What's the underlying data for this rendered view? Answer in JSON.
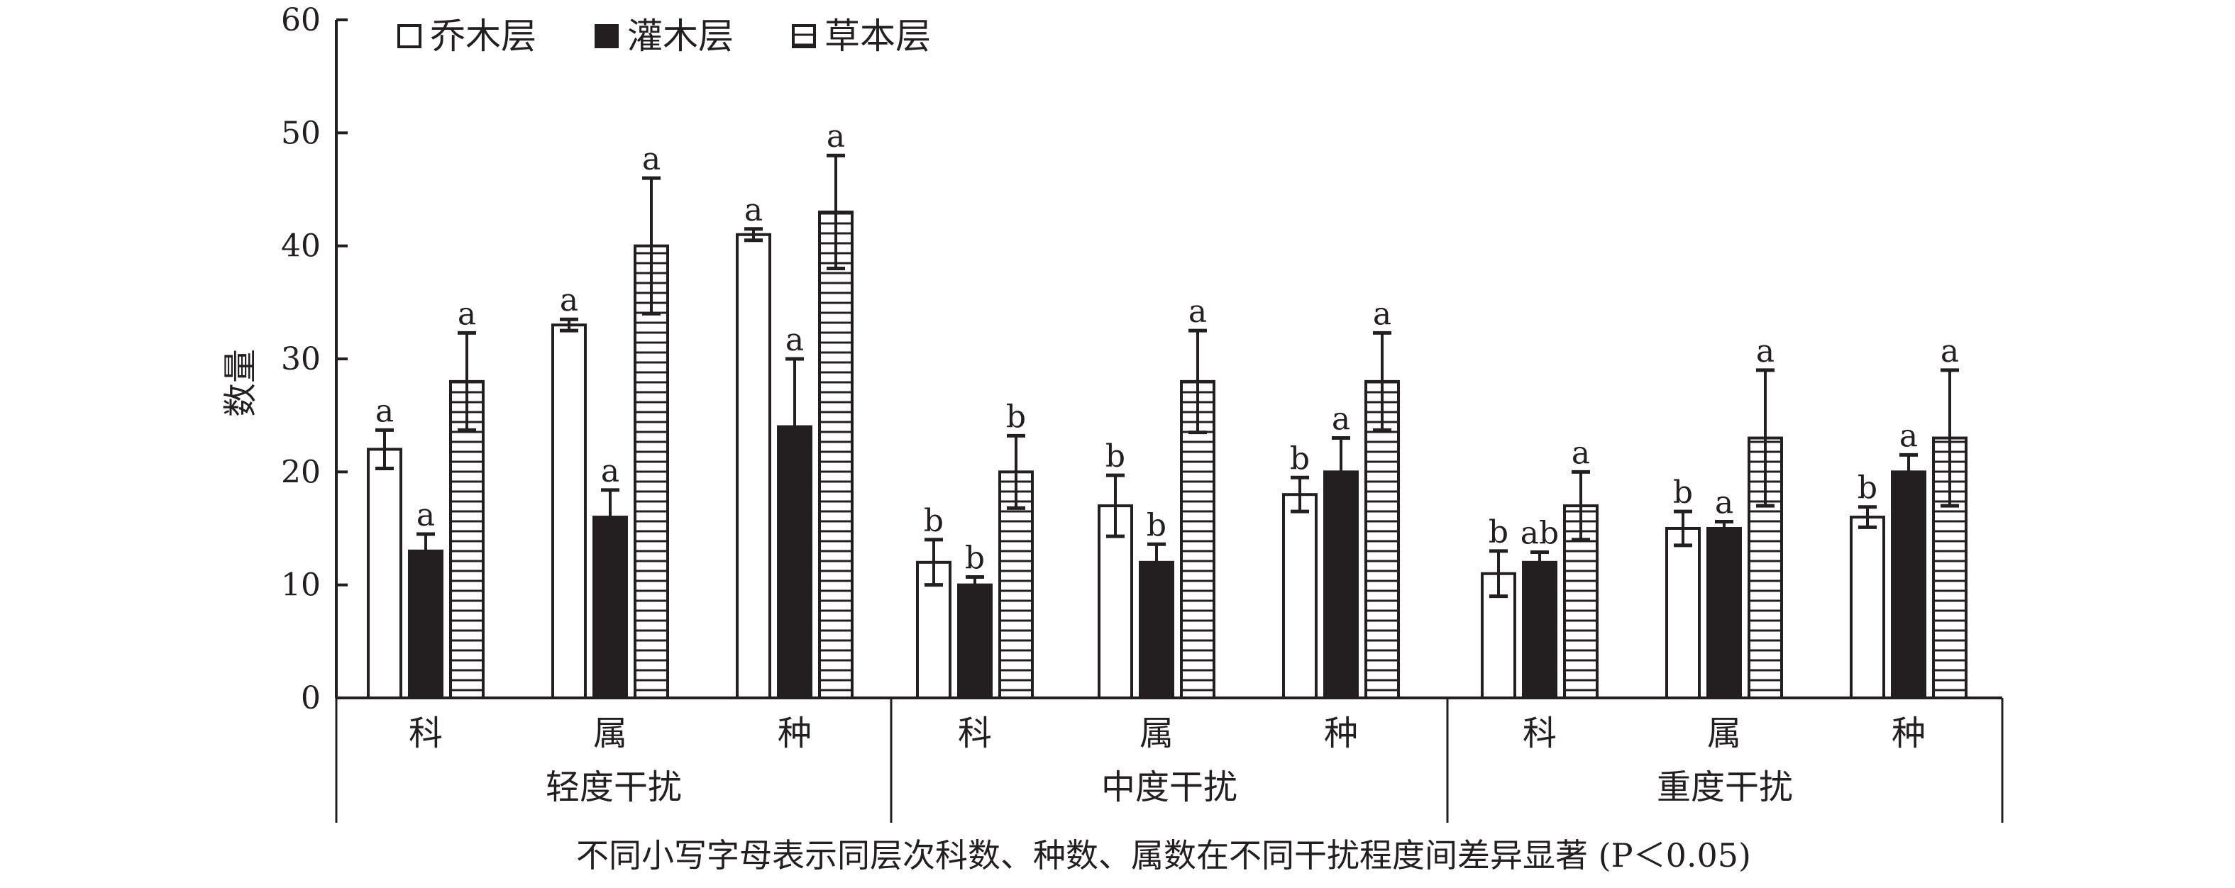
{
  "chart_data": {
    "type": "bar",
    "ylabel": "数量",
    "ylim": [
      0,
      60
    ],
    "yticks": [
      0,
      10,
      20,
      30,
      40,
      50,
      60
    ],
    "legend_position": "top-left",
    "series": [
      {
        "name": "乔木层",
        "style": "white",
        "values": [
          22,
          33,
          41,
          12,
          17,
          18,
          11,
          15,
          16
        ],
        "errors": [
          1.7,
          0.5,
          0.5,
          2,
          2.7,
          1.5,
          2,
          1.5,
          0.9
        ],
        "letters": [
          "a",
          "a",
          "a",
          "b",
          "b",
          "b",
          "b",
          "b",
          "b"
        ]
      },
      {
        "name": "灌木层",
        "style": "black",
        "values": [
          13,
          16,
          24,
          10,
          12,
          20,
          12,
          15,
          20
        ],
        "errors": [
          1.5,
          2.4,
          6,
          0.7,
          1.6,
          3,
          0.9,
          0.6,
          1.5
        ],
        "letters": [
          "a",
          "a",
          "a",
          "b",
          "b",
          "a",
          "ab",
          "a",
          "a"
        ]
      },
      {
        "name": "草本层",
        "style": "hatched",
        "values": [
          28,
          40,
          43,
          20,
          28,
          28,
          17,
          23,
          23
        ],
        "errors": [
          4.3,
          6,
          5,
          3.2,
          4.5,
          4.3,
          3,
          6,
          6
        ],
        "letters": [
          "a",
          "a",
          "a",
          "b",
          "a",
          "a",
          "a",
          "a",
          "a"
        ]
      }
    ],
    "categories": [
      "科",
      "属",
      "种",
      "科",
      "属",
      "种",
      "科",
      "属",
      "种"
    ],
    "groups": [
      "轻度干扰",
      "中度干扰",
      "重度干扰"
    ],
    "footnote": "不同小写字母表示同层次科数、种数、属数在不同干扰程度间差异显著 (P＜0.05)"
  },
  "colors": {
    "ink": "#231f20",
    "fill_white": "#ffffff"
  }
}
